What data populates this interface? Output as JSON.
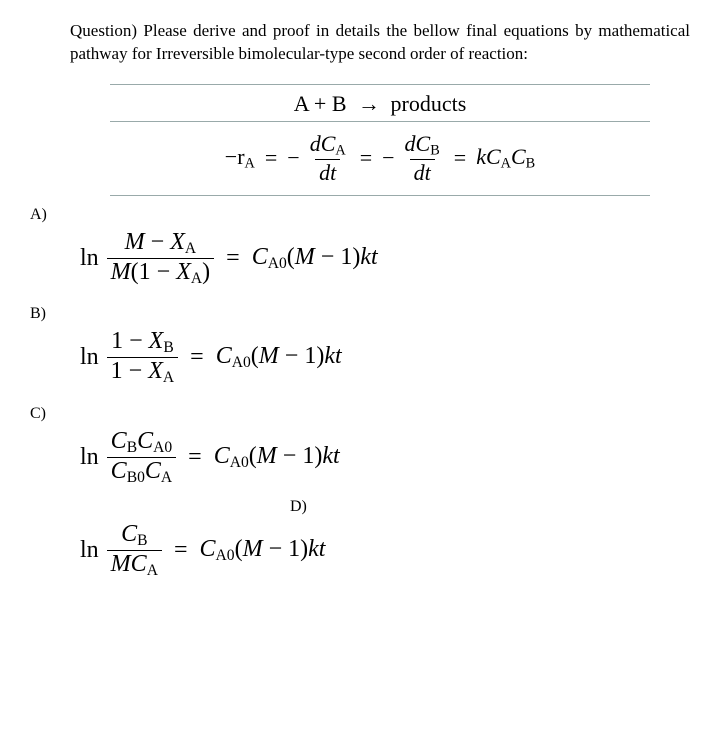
{
  "colors": {
    "text": "#000000",
    "background": "#ffffff",
    "rule": "#99aabb"
  },
  "typography": {
    "body_family": "Times New Roman",
    "body_size_pt": 13,
    "equation_size_pt": 18
  },
  "prompt": {
    "lead": "Question)",
    "text": " Please derive and proof in details the bellow final equations by mathematical pathway for Irreversible bimolecular-type second order of reaction:"
  },
  "reaction": {
    "lhs": "A + B",
    "arrow": "→",
    "rhs": "products"
  },
  "rate": {
    "minus_r": "−r",
    "sub_A": "A",
    "eq": " = ",
    "minus": "−",
    "d": "d",
    "C": "C",
    "sub_B": "B",
    "dt": "dt",
    "k": "k"
  },
  "labels": {
    "A": "A)",
    "B": "B)",
    "C": "C)",
    "D": "D)"
  },
  "sym": {
    "ln": "ln",
    "M": "M",
    "X": "X",
    "C": "C",
    "one": "1",
    "minus": " − ",
    "eq": " = ",
    "k": "k",
    "t": "t",
    "A": "A",
    "B": "B",
    "A0": "A0",
    "B0": "B0",
    "lp": "(",
    "rp": ")"
  }
}
